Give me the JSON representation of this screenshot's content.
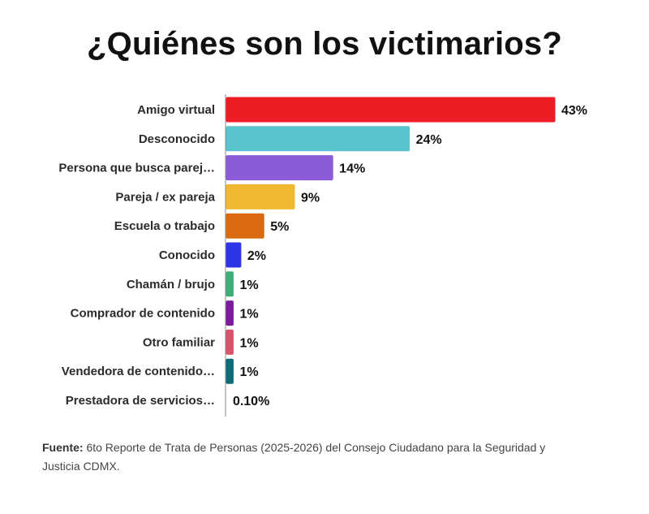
{
  "title": "¿Quiénes son los victimarios?",
  "source": {
    "label": "Fuente:",
    "text": "6to Reporte de Trata de Personas (2025-2026) del Consejo Ciudadano para la Seguridad y Justicia CDMX."
  },
  "chart_data": {
    "type": "bar",
    "orientation": "horizontal",
    "title": "¿Quiénes son los victimarios?",
    "xlabel": "",
    "ylabel": "",
    "unit": "%",
    "grid": false,
    "categories": [
      "Amigo virtual",
      "Desconocido",
      "Persona que busca parej…",
      "Pareja / ex pareja",
      "Escuela o trabajo",
      "Conocido",
      "Chamán / brujo",
      "Comprador de contenido",
      "Otro familiar",
      "Vendedora de contenido…",
      "Prestadora de servicios…"
    ],
    "values": [
      43,
      24,
      14,
      9,
      5,
      2,
      1,
      1,
      1,
      1,
      0.1
    ],
    "value_labels": [
      "43%",
      "24%",
      "14%",
      "9%",
      "5%",
      "2%",
      "1%",
      "1%",
      "1%",
      "1%",
      "0.10%"
    ],
    "colors": [
      "#ee1c25",
      "#59c3cc",
      "#8b5bd9",
      "#f2b731",
      "#d96a10",
      "#2d36e6",
      "#3dae78",
      "#7a1a9c",
      "#d9546a",
      "#0f6b75",
      "#cccccc"
    ]
  }
}
